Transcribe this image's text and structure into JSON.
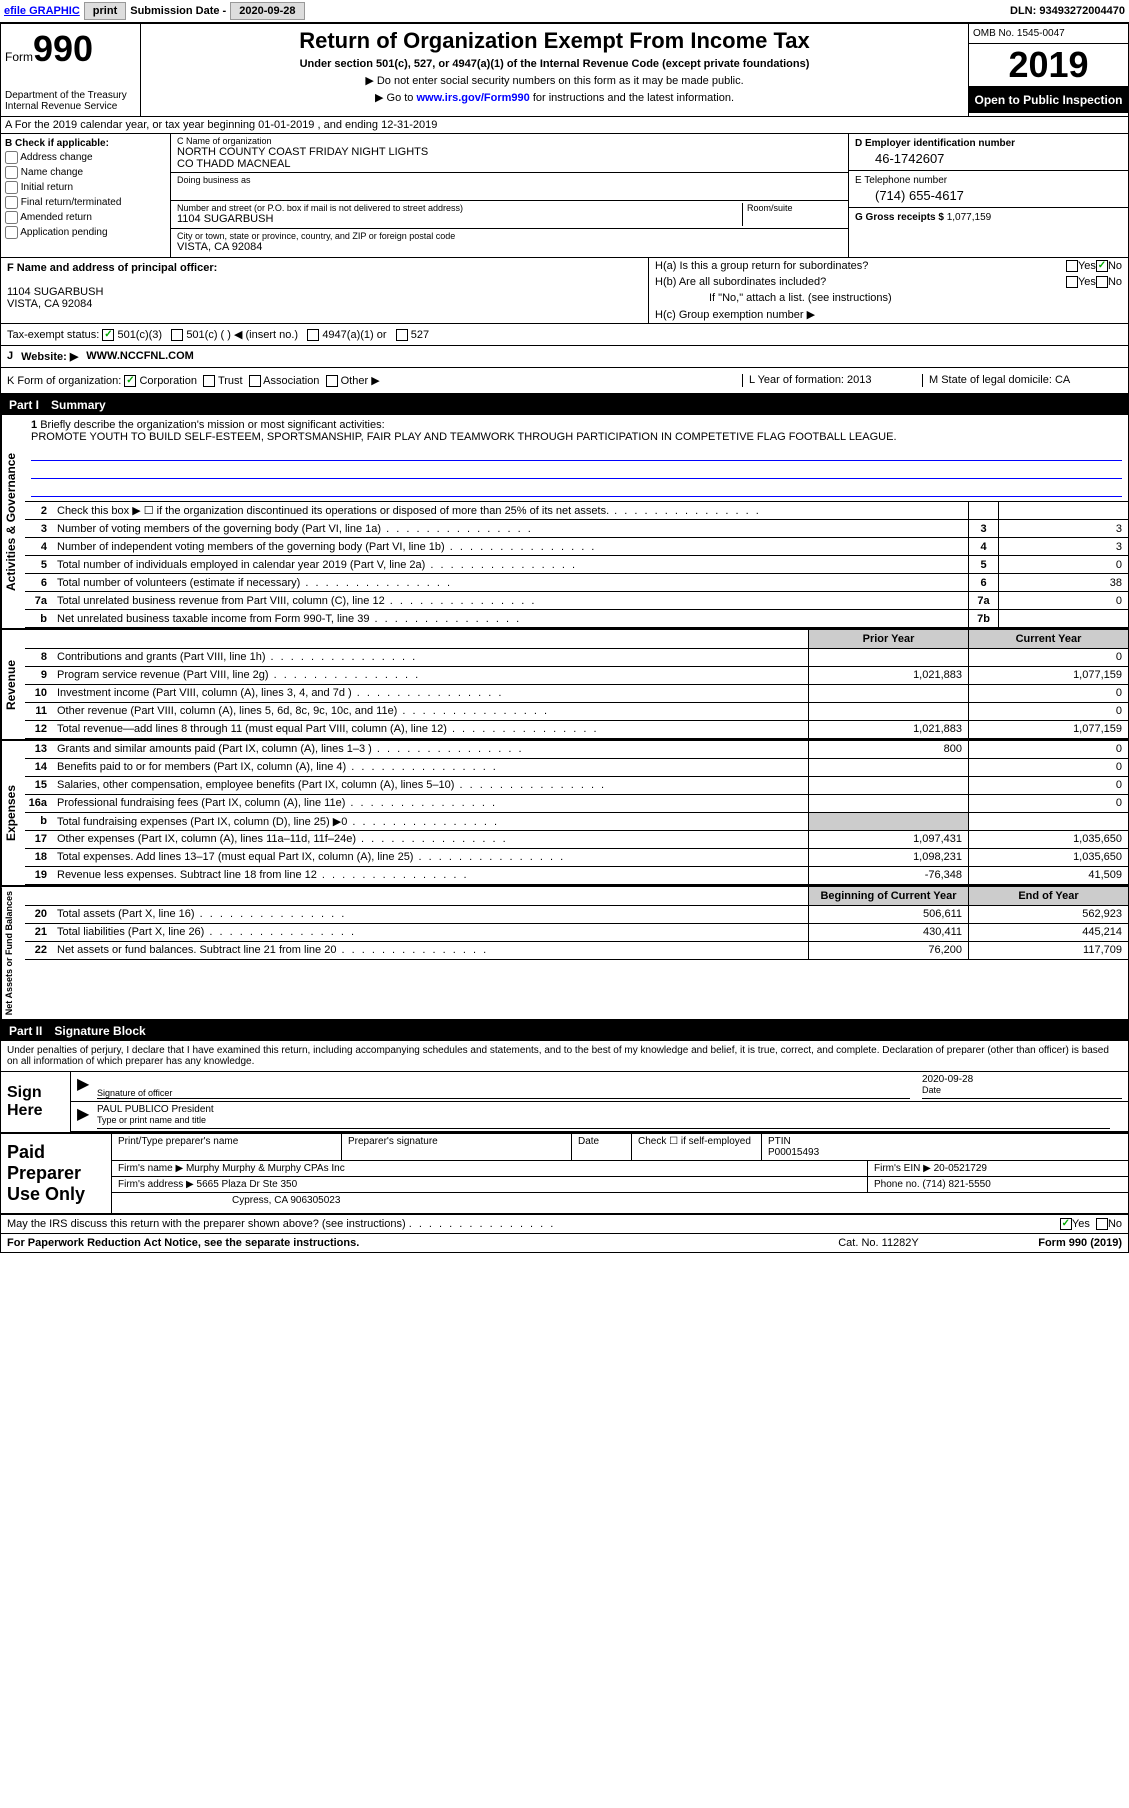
{
  "top": {
    "efile": "efile GRAPHIC",
    "print": "print",
    "subdate_label": "Submission Date - ",
    "subdate": "2020-09-28",
    "dln_label": "DLN: ",
    "dln": "93493272004470"
  },
  "header": {
    "form_label": "Form",
    "form_num": "990",
    "dept": "Department of the Treasury\nInternal Revenue Service",
    "title": "Return of Organization Exempt From Income Tax",
    "subtitle": "Under section 501(c), 527, or 4947(a)(1) of the Internal Revenue Code (except private foundations)",
    "instr1": "▶ Do not enter social security numbers on this form as it may be made public.",
    "instr2_pre": "▶ Go to ",
    "instr2_link": "www.irs.gov/Form990",
    "instr2_post": " for instructions and the latest information.",
    "omb": "OMB No. 1545-0047",
    "year": "2019",
    "open": "Open to Public Inspection"
  },
  "row_a": "A For the 2019 calendar year, or tax year beginning 01-01-2019   , and ending 12-31-2019",
  "b": {
    "label": "B Check if applicable:",
    "opts": [
      "Address change",
      "Name change",
      "Initial return",
      "Final return/terminated",
      "Amended return",
      "Application pending"
    ]
  },
  "c": {
    "name_lbl": "C Name of organization",
    "name": "NORTH COUNTY COAST FRIDAY NIGHT LIGHTS\nCO THADD MACNEAL",
    "dba_lbl": "Doing business as",
    "dba": "",
    "addr_lbl": "Number and street (or P.O. box if mail is not delivered to street address)",
    "room_lbl": "Room/suite",
    "addr": "1104 SUGARBUSH",
    "city_lbl": "City or town, state or province, country, and ZIP or foreign postal code",
    "city": "VISTA, CA  92084"
  },
  "d": {
    "lbl": "D Employer identification number",
    "val": "46-1742607"
  },
  "e": {
    "lbl": "E Telephone number",
    "val": "(714) 655-4617"
  },
  "g": {
    "lbl": "G Gross receipts $ ",
    "val": "1,077,159"
  },
  "f": {
    "lbl": "F  Name and address of principal officer:",
    "addr1": "1104 SUGARBUSH",
    "addr2": "VISTA, CA  92084"
  },
  "h": {
    "a": "H(a)  Is this a group return for subordinates?",
    "b": "H(b)  Are all subordinates included?",
    "b_note": "If \"No,\" attach a list. (see instructions)",
    "c": "H(c)  Group exemption number ▶"
  },
  "tax_status": {
    "lbl": "Tax-exempt status:",
    "o1": "501(c)(3)",
    "o2": "501(c) (  ) ◀ (insert no.)",
    "o3": "4947(a)(1) or",
    "o4": "527"
  },
  "j": {
    "lbl": "J",
    "wlbl": "Website: ▶",
    "val": "WWW.NCCFNL.COM"
  },
  "k": {
    "lbl": "K Form of organization:",
    "opts": [
      "Corporation",
      "Trust",
      "Association",
      "Other ▶"
    ],
    "l_lbl": "L Year of formation: ",
    "l_val": "2013",
    "m_lbl": "M State of legal domicile: ",
    "m_val": "CA"
  },
  "part1": {
    "num": "Part I",
    "title": "Summary"
  },
  "mission": {
    "num": "1",
    "lbl": "Briefly describe the organization's mission or most significant activities:",
    "text": "PROMOTE YOUTH TO BUILD SELF-ESTEEM, SPORTSMANSHIP, FAIR PLAY AND TEAMWORK THROUGH PARTICIPATION IN COMPETETIVE FLAG FOOTBALL LEAGUE."
  },
  "gov_lines": [
    {
      "n": "2",
      "d": "Check this box ▶ ☐  if the organization discontinued its operations or disposed of more than 25% of its net assets.",
      "box": "",
      "v": ""
    },
    {
      "n": "3",
      "d": "Number of voting members of the governing body (Part VI, line 1a)",
      "box": "3",
      "v": "3"
    },
    {
      "n": "4",
      "d": "Number of independent voting members of the governing body (Part VI, line 1b)",
      "box": "4",
      "v": "3"
    },
    {
      "n": "5",
      "d": "Total number of individuals employed in calendar year 2019 (Part V, line 2a)",
      "box": "5",
      "v": "0"
    },
    {
      "n": "6",
      "d": "Total number of volunteers (estimate if necessary)",
      "box": "6",
      "v": "38"
    },
    {
      "n": "7a",
      "d": "Total unrelated business revenue from Part VIII, column (C), line 12",
      "box": "7a",
      "v": "0"
    },
    {
      "n": "b",
      "d": "Net unrelated business taxable income from Form 990-T, line 39",
      "box": "7b",
      "v": ""
    }
  ],
  "cols": {
    "prior": "Prior Year",
    "current": "Current Year"
  },
  "rev_lines": [
    {
      "n": "8",
      "d": "Contributions and grants (Part VIII, line 1h)",
      "pv": "",
      "cv": "0"
    },
    {
      "n": "9",
      "d": "Program service revenue (Part VIII, line 2g)",
      "pv": "1,021,883",
      "cv": "1,077,159"
    },
    {
      "n": "10",
      "d": "Investment income (Part VIII, column (A), lines 3, 4, and 7d )",
      "pv": "",
      "cv": "0"
    },
    {
      "n": "11",
      "d": "Other revenue (Part VIII, column (A), lines 5, 6d, 8c, 9c, 10c, and 11e)",
      "pv": "",
      "cv": "0"
    },
    {
      "n": "12",
      "d": "Total revenue—add lines 8 through 11 (must equal Part VIII, column (A), line 12)",
      "pv": "1,021,883",
      "cv": "1,077,159"
    }
  ],
  "exp_lines": [
    {
      "n": "13",
      "d": "Grants and similar amounts paid (Part IX, column (A), lines 1–3 )",
      "pv": "800",
      "cv": "0"
    },
    {
      "n": "14",
      "d": "Benefits paid to or for members (Part IX, column (A), line 4)",
      "pv": "",
      "cv": "0"
    },
    {
      "n": "15",
      "d": "Salaries, other compensation, employee benefits (Part IX, column (A), lines 5–10)",
      "pv": "",
      "cv": "0"
    },
    {
      "n": "16a",
      "d": "Professional fundraising fees (Part IX, column (A), line 11e)",
      "pv": "",
      "cv": "0"
    },
    {
      "n": "b",
      "d": "Total fundraising expenses (Part IX, column (D), line 25) ▶0",
      "pv": "",
      "cv": "",
      "shaded": true
    },
    {
      "n": "17",
      "d": "Other expenses (Part IX, column (A), lines 11a–11d, 11f–24e)",
      "pv": "1,097,431",
      "cv": "1,035,650"
    },
    {
      "n": "18",
      "d": "Total expenses. Add lines 13–17 (must equal Part IX, column (A), line 25)",
      "pv": "1,098,231",
      "cv": "1,035,650"
    },
    {
      "n": "19",
      "d": "Revenue less expenses. Subtract line 18 from line 12",
      "pv": "-76,348",
      "cv": "41,509"
    }
  ],
  "na_cols": {
    "begin": "Beginning of Current Year",
    "end": "End of Year"
  },
  "na_lines": [
    {
      "n": "20",
      "d": "Total assets (Part X, line 16)",
      "pv": "506,611",
      "cv": "562,923"
    },
    {
      "n": "21",
      "d": "Total liabilities (Part X, line 26)",
      "pv": "430,411",
      "cv": "445,214"
    },
    {
      "n": "22",
      "d": "Net assets or fund balances. Subtract line 21 from line 20",
      "pv": "76,200",
      "cv": "117,709"
    }
  ],
  "part2": {
    "num": "Part II",
    "title": "Signature Block"
  },
  "sig": {
    "decl": "Under penalties of perjury, I declare that I have examined this return, including accompanying schedules and statements, and to the best of my knowledge and belief, it is true, correct, and complete. Declaration of preparer (other than officer) is based on all information of which preparer has any knowledge.",
    "here": "Sign Here",
    "sig_lbl": "Signature of officer",
    "date_lbl": "Date",
    "date": "2020-09-28",
    "name": "PAUL PUBLICO President",
    "name_lbl": "Type or print name and title"
  },
  "prep": {
    "title": "Paid Preparer Use Only",
    "r1": {
      "c1": "Print/Type preparer's name",
      "c2": "Preparer's signature",
      "c3": "Date",
      "c4": "Check ☐ if self-employed",
      "c5_lbl": "PTIN",
      "c5": "P00015493"
    },
    "r2": {
      "lbl": "Firm's name    ▶",
      "val": "Murphy Murphy & Murphy CPAs Inc",
      "ein_lbl": "Firm's EIN ▶",
      "ein": "20-0521729"
    },
    "r3": {
      "lbl": "Firm's address ▶",
      "val": "5665 Plaza Dr Ste 350",
      "ph_lbl": "Phone no. ",
      "ph": "(714) 821-5550"
    },
    "r4": "Cypress, CA  906305023"
  },
  "discuss": "May the IRS discuss this return with the preparer shown above? (see instructions)",
  "footer": {
    "left": "For Paperwork Reduction Act Notice, see the separate instructions.",
    "mid": "Cat. No. 11282Y",
    "right": "Form 990 (2019)"
  },
  "side_labels": {
    "gov": "Activities & Governance",
    "rev": "Revenue",
    "exp": "Expenses",
    "na": "Net Assets or Fund Balances"
  }
}
